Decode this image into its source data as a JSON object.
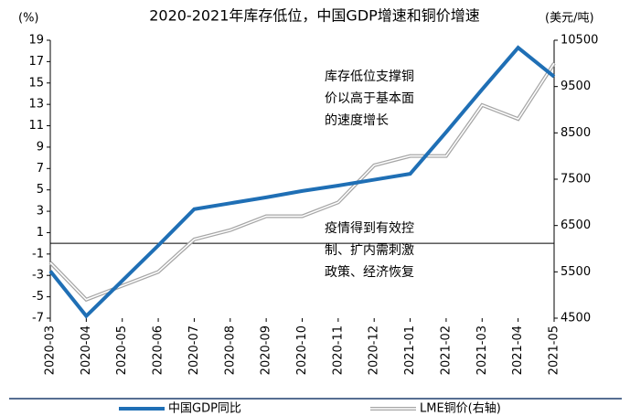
{
  "chart_data": {
    "type": "line",
    "title": "2020-2021年库存低位，中国GDP增速和铜价增速",
    "y_unit": "(%)",
    "y2_unit": "(美元/吨)",
    "categories": [
      "2020-03",
      "2020-04",
      "2020-05",
      "2020-06",
      "2020-07",
      "2020-08",
      "2020-09",
      "2020-10",
      "2020-11",
      "2020-12",
      "2021-01",
      "2021-02",
      "2021-03",
      "2021-04",
      "2021-05"
    ],
    "series": [
      {
        "name": "中国GDP同比",
        "color": "#1f6fb5",
        "values": [
          -2.6,
          -6.8,
          -3.5,
          -0.2,
          3.2,
          3.75,
          4.3,
          4.9,
          5.4,
          5.95,
          6.5,
          10.4,
          14.4,
          18.3,
          15.6
        ]
      },
      {
        "name": "LME铜价(右轴)",
        "color": "#a6a6a6",
        "axis": "y2",
        "values": [
          5700,
          4900,
          5200,
          5500,
          6200,
          6400,
          6700,
          6700,
          7000,
          7800,
          8000,
          8000,
          9100,
          8800,
          10000
        ]
      }
    ],
    "ylim": [
      -7,
      19
    ],
    "yticks": [
      -7,
      -5,
      -3,
      -1,
      1,
      3,
      5,
      7,
      9,
      11,
      13,
      15,
      17,
      19
    ],
    "y2lim": [
      4500,
      10500
    ],
    "y2ticks": [
      4500,
      5500,
      6500,
      7500,
      8500,
      9500,
      10500
    ],
    "annotations": [
      {
        "lines": [
          "库存低位支撑铜",
          "价以高于基本面",
          "的速度增长"
        ]
      },
      {
        "lines": [
          "疫情得到有效控",
          "制、扩内需刺激",
          "政策、经济恢复"
        ]
      }
    ]
  }
}
